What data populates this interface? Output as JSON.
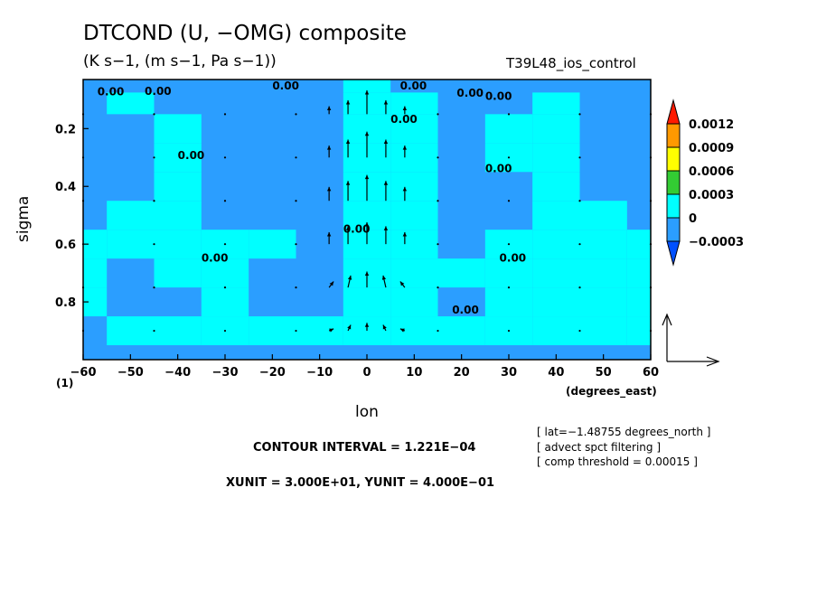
{
  "header": {
    "title": "DTCOND (U, −OMG) composite",
    "units": "(K s−1, (m s−1, Pa s−1))",
    "run_name": "T39L48_ios_control"
  },
  "info": {
    "lat": "[ lat=−1.48755 degrees_north ]",
    "filter": "[ advect spct filtering ]",
    "threshold": "[ comp threshold = 0.00015 ]"
  },
  "footer": {
    "contour_interval": "CONTOUR INTERVAL = 1.221E−04",
    "xy_unit": "XUNIT = 3.000E+01, YUNIT = 4.000E−01"
  },
  "chart_data": {
    "type": "heatmap",
    "xlabel": "lon",
    "x_unit_label": "(degrees_east)",
    "ylabel": "sigma",
    "y_corner_label": "(1)",
    "xlim": [
      -60,
      60
    ],
    "ylim": [
      1.0,
      0.03
    ],
    "x_ticks": [
      -60,
      -50,
      -40,
      -30,
      -20,
      -10,
      0,
      10,
      20,
      30,
      40,
      50,
      60
    ],
    "x_tick_labels": [
      "−60",
      "−50",
      "−40",
      "−30",
      "−20",
      "−10",
      "0",
      "10",
      "20",
      "30",
      "40",
      "50",
      "60"
    ],
    "y_ticks": [
      0.2,
      0.4,
      0.6,
      0.8
    ],
    "y_tick_labels": [
      "0.2",
      "0.4",
      "0.6",
      "0.8"
    ],
    "colorbar": {
      "levels": [
        "0.0012",
        "0.0009",
        "0.0006",
        "0.0003",
        "0",
        "−0.0003"
      ],
      "colors": [
        "#ff1a00",
        "#ff9900",
        "#ffff00",
        "#33cc33",
        "#00ffff",
        "#2b9eff",
        "#0050ff"
      ]
    },
    "fill_colors": {
      "negative": "#2b9eff",
      "near_zero": "#00ffff"
    },
    "contour_label": "0.00",
    "field": {
      "lon": [
        -60,
        -50,
        -40,
        -30,
        -20,
        -10,
        0,
        10,
        20,
        30,
        40,
        50,
        60
      ],
      "sigma": [
        0.05,
        0.1,
        0.2,
        0.3,
        0.4,
        0.5,
        0.6,
        0.7,
        0.8,
        0.9,
        1.0
      ],
      "values": [
        [
          -0.0002,
          -0.0002,
          -0.0002,
          -0.0002,
          -0.0002,
          -0.0002,
          0.0,
          -0.0002,
          -0.0002,
          -0.0002,
          -0.0002,
          -0.0002,
          -0.0002
        ],
        [
          -0.0002,
          0.0001,
          -0.0001,
          -0.0001,
          -0.0002,
          -0.0002,
          0.0001,
          0.0,
          -0.0002,
          -0.0001,
          0.0001,
          -0.0002,
          -0.0002
        ],
        [
          -0.0002,
          -0.0001,
          0.0001,
          -0.0002,
          -0.0002,
          -0.0002,
          0.0001,
          0.0001,
          -0.0002,
          0.0001,
          0.0001,
          -0.0002,
          -0.0002
        ],
        [
          -0.0002,
          -0.0002,
          0.0001,
          -0.0002,
          -0.0002,
          -0.0001,
          0.0001,
          0.0001,
          -0.0002,
          0.0001,
          0.0001,
          -0.0002,
          -0.0002
        ],
        [
          -0.0002,
          -0.0001,
          0.0001,
          -0.0002,
          -0.0002,
          -0.0001,
          0.0001,
          0.0001,
          -0.0002,
          -0.0002,
          0.0001,
          -0.0001,
          -0.0002
        ],
        [
          -0.0001,
          0.0001,
          0.0001,
          -0.0001,
          -0.0002,
          -0.0001,
          0.0001,
          0.0001,
          -0.0002,
          -0.0001,
          0.0001,
          0.0001,
          -0.0001
        ],
        [
          0.0001,
          0.0001,
          0.0001,
          0.0001,
          0.0001,
          -0.0001,
          0.0001,
          0.0001,
          -0.0001,
          0.0001,
          0.0001,
          0.0001,
          0.0001
        ],
        [
          0.0001,
          -0.0001,
          0.0001,
          0.0001,
          -0.0002,
          -0.0001,
          0.0001,
          0.0001,
          0.0001,
          0.0001,
          0.0001,
          0.0001,
          0.0001
        ],
        [
          0.0001,
          -0.0002,
          -0.0001,
          0.0001,
          -0.0002,
          -0.0001,
          0.0001,
          0.0001,
          -0.0001,
          0.0001,
          0.0001,
          0.0001,
          0.0001
        ],
        [
          -0.0001,
          0.0001,
          0.0001,
          0.0001,
          0.0001,
          0.0001,
          0.0001,
          0.0001,
          0.0001,
          0.0001,
          0.0001,
          0.0001,
          0.0001
        ],
        [
          -0.0002,
          -0.0001,
          -0.0001,
          -0.0001,
          -0.0001,
          -0.0001,
          -0.0001,
          -0.0001,
          -0.0001,
          -0.0001,
          -0.0001,
          -0.0001,
          -0.0001
        ]
      ]
    },
    "vector_field": {
      "lon": [
        -60,
        -45,
        -30,
        -15,
        -8,
        -4,
        0,
        4,
        8,
        15,
        30,
        45,
        60
      ],
      "sigma": [
        0.15,
        0.3,
        0.45,
        0.6,
        0.75,
        0.9
      ],
      "u": [
        [
          0,
          0,
          0,
          0,
          0,
          0,
          0,
          0,
          0,
          0,
          0,
          0,
          0
        ],
        [
          0,
          0,
          0,
          0,
          0,
          0,
          0,
          0,
          0,
          0,
          0,
          0,
          0
        ],
        [
          0,
          0,
          0,
          0,
          0,
          0,
          0,
          0,
          0,
          0,
          0,
          0,
          0
        ],
        [
          0,
          0,
          0,
          0,
          0,
          0,
          0,
          0,
          0,
          0,
          0,
          0,
          0
        ],
        [
          0,
          0,
          0,
          0,
          0.5,
          0.3,
          0,
          -0.3,
          -0.5,
          0,
          0,
          0,
          0
        ],
        [
          0,
          0,
          0,
          0,
          0.5,
          0.3,
          0,
          -0.3,
          -0.5,
          0,
          0,
          0,
          0
        ]
      ],
      "w": [
        [
          0,
          0,
          0,
          0,
          0.4,
          0.7,
          1.2,
          0.7,
          0.4,
          0,
          0,
          0,
          0
        ],
        [
          0,
          0,
          0,
          0,
          0.6,
          0.9,
          1.3,
          0.9,
          0.6,
          0,
          0,
          0,
          0
        ],
        [
          0,
          0,
          0,
          0,
          0.7,
          1.0,
          1.3,
          1.0,
          0.7,
          0,
          0,
          0,
          0
        ],
        [
          0,
          0,
          0,
          0,
          0.6,
          0.9,
          1.1,
          0.9,
          0.6,
          0,
          0,
          0,
          0
        ],
        [
          0,
          0,
          0,
          0,
          0.3,
          0.6,
          0.8,
          0.6,
          0.3,
          0,
          0,
          0,
          0
        ],
        [
          0,
          0,
          0,
          0,
          0.1,
          0.3,
          0.4,
          0.3,
          0.1,
          0,
          0,
          0,
          0
        ]
      ]
    },
    "vector_reference": {
      "xunit": 30.0,
      "yunit": 0.4
    }
  }
}
